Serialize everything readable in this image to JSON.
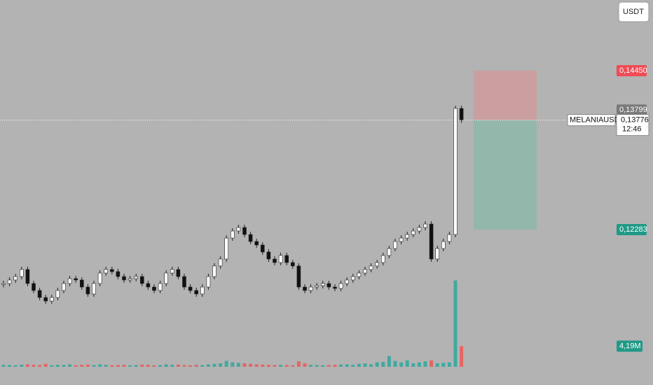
{
  "chart_data": {
    "type": "candlestick",
    "currency_button": "USDT",
    "symbol": "MELANIAUSDT.P",
    "countdown": "12:46",
    "ylim": [
      0.10164,
      0.15414
    ],
    "volume_ylim": [
      0,
      74300000
    ],
    "stop_price": {
      "value": 0.1445,
      "label": "0,14450"
    },
    "high_price": {
      "value": 0.13799,
      "label": "0,13799"
    },
    "last_price": {
      "value": 0.13776,
      "label": "0,13776"
    },
    "target_price": {
      "value": 0.12283,
      "label": "0,12283"
    },
    "up_color": "#ffffff",
    "down_color": "#111111",
    "volume_up_color": "#26a69a",
    "volume_down_color": "#ef5350",
    "closes": [
      0.11548,
      0.11596,
      0.11643,
      0.11739,
      0.11548,
      0.11453,
      0.11357,
      0.11309,
      0.11357,
      0.11453,
      0.11548,
      0.11615,
      0.11596,
      0.115,
      0.11405,
      0.11548,
      0.11691,
      0.11739,
      0.1171,
      0.11643,
      0.11596,
      0.11615,
      0.11643,
      0.11548,
      0.115,
      0.11453,
      0.11548,
      0.11691,
      0.11739,
      0.11643,
      0.115,
      0.11453,
      0.11405,
      0.115,
      0.11643,
      0.11787,
      0.11882,
      0.12168,
      0.12264,
      0.12312,
      0.12216,
      0.12121,
      0.12073,
      0.11978,
      0.11882,
      0.11834,
      0.1193,
      0.11834,
      0.11787,
      0.115,
      0.11453,
      0.115,
      0.11519,
      0.11548,
      0.115,
      0.11481,
      0.11548,
      0.11596,
      0.11643,
      0.11691,
      0.11739,
      0.11787,
      0.11834,
      0.1193,
      0.12025,
      0.12121,
      0.12168,
      0.12216,
      0.12264,
      0.12312,
      0.12359,
      0.11882,
      0.12025,
      0.12121,
      0.12216,
      0.13935,
      0.13776
    ],
    "volumes": [
      400000,
      350000,
      300000,
      450000,
      500000,
      400000,
      350000,
      600000,
      300000,
      400000,
      350000,
      500000,
      300000,
      400000,
      450000,
      350000,
      500000,
      400000,
      300000,
      350000,
      400000,
      300000,
      350000,
      450000,
      400000,
      300000,
      350000,
      500000,
      400000,
      450000,
      350000,
      300000,
      400000,
      350000,
      500000,
      600000,
      700000,
      1200000,
      900000,
      800000,
      700000,
      600000,
      500000,
      450000,
      400000,
      350000,
      400000,
      350000,
      300000,
      1100000,
      700000,
      400000,
      350000,
      300000,
      350000,
      400000,
      450000,
      500000,
      400000,
      600000,
      700000,
      500000,
      900000,
      1000000,
      2160000,
      1200000,
      900000,
      1300000,
      700000,
      900000,
      1100000,
      1300000,
      700000,
      800000,
      900000,
      17500000,
      4190000
    ],
    "volume_label": {
      "value": 4190000,
      "label": "4,19M"
    }
  }
}
